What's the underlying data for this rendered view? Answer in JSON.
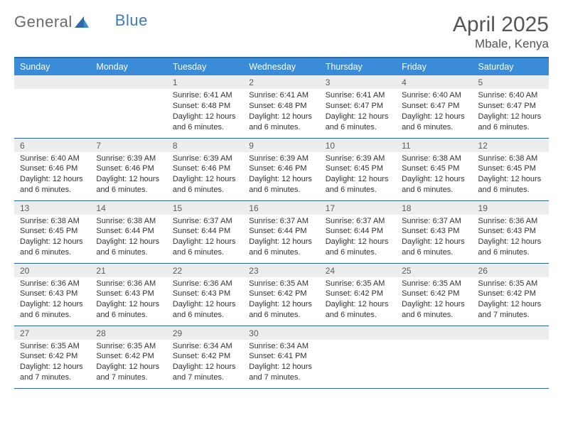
{
  "logo": {
    "text1": "General",
    "text2": "Blue"
  },
  "title": "April 2025",
  "location": "Mbale, Kenya",
  "colors": {
    "header_bg": "#3a8bd8",
    "header_text": "#ffffff",
    "border": "#2e6aa8",
    "daynum_bg": "#eceded",
    "text": "#333333",
    "logo_gray": "#6b6b6b",
    "logo_blue": "#3a7cc4"
  },
  "weekdays": [
    "Sunday",
    "Monday",
    "Tuesday",
    "Wednesday",
    "Thursday",
    "Friday",
    "Saturday"
  ],
  "weeks": [
    [
      null,
      null,
      {
        "n": "1",
        "sr": "6:41 AM",
        "ss": "6:48 PM",
        "dl": "12 hours and 6 minutes."
      },
      {
        "n": "2",
        "sr": "6:41 AM",
        "ss": "6:48 PM",
        "dl": "12 hours and 6 minutes."
      },
      {
        "n": "3",
        "sr": "6:41 AM",
        "ss": "6:47 PM",
        "dl": "12 hours and 6 minutes."
      },
      {
        "n": "4",
        "sr": "6:40 AM",
        "ss": "6:47 PM",
        "dl": "12 hours and 6 minutes."
      },
      {
        "n": "5",
        "sr": "6:40 AM",
        "ss": "6:47 PM",
        "dl": "12 hours and 6 minutes."
      }
    ],
    [
      {
        "n": "6",
        "sr": "6:40 AM",
        "ss": "6:46 PM",
        "dl": "12 hours and 6 minutes."
      },
      {
        "n": "7",
        "sr": "6:39 AM",
        "ss": "6:46 PM",
        "dl": "12 hours and 6 minutes."
      },
      {
        "n": "8",
        "sr": "6:39 AM",
        "ss": "6:46 PM",
        "dl": "12 hours and 6 minutes."
      },
      {
        "n": "9",
        "sr": "6:39 AM",
        "ss": "6:46 PM",
        "dl": "12 hours and 6 minutes."
      },
      {
        "n": "10",
        "sr": "6:39 AM",
        "ss": "6:45 PM",
        "dl": "12 hours and 6 minutes."
      },
      {
        "n": "11",
        "sr": "6:38 AM",
        "ss": "6:45 PM",
        "dl": "12 hours and 6 minutes."
      },
      {
        "n": "12",
        "sr": "6:38 AM",
        "ss": "6:45 PM",
        "dl": "12 hours and 6 minutes."
      }
    ],
    [
      {
        "n": "13",
        "sr": "6:38 AM",
        "ss": "6:45 PM",
        "dl": "12 hours and 6 minutes."
      },
      {
        "n": "14",
        "sr": "6:38 AM",
        "ss": "6:44 PM",
        "dl": "12 hours and 6 minutes."
      },
      {
        "n": "15",
        "sr": "6:37 AM",
        "ss": "6:44 PM",
        "dl": "12 hours and 6 minutes."
      },
      {
        "n": "16",
        "sr": "6:37 AM",
        "ss": "6:44 PM",
        "dl": "12 hours and 6 minutes."
      },
      {
        "n": "17",
        "sr": "6:37 AM",
        "ss": "6:44 PM",
        "dl": "12 hours and 6 minutes."
      },
      {
        "n": "18",
        "sr": "6:37 AM",
        "ss": "6:43 PM",
        "dl": "12 hours and 6 minutes."
      },
      {
        "n": "19",
        "sr": "6:36 AM",
        "ss": "6:43 PM",
        "dl": "12 hours and 6 minutes."
      }
    ],
    [
      {
        "n": "20",
        "sr": "6:36 AM",
        "ss": "6:43 PM",
        "dl": "12 hours and 6 minutes."
      },
      {
        "n": "21",
        "sr": "6:36 AM",
        "ss": "6:43 PM",
        "dl": "12 hours and 6 minutes."
      },
      {
        "n": "22",
        "sr": "6:36 AM",
        "ss": "6:43 PM",
        "dl": "12 hours and 6 minutes."
      },
      {
        "n": "23",
        "sr": "6:35 AM",
        "ss": "6:42 PM",
        "dl": "12 hours and 6 minutes."
      },
      {
        "n": "24",
        "sr": "6:35 AM",
        "ss": "6:42 PM",
        "dl": "12 hours and 6 minutes."
      },
      {
        "n": "25",
        "sr": "6:35 AM",
        "ss": "6:42 PM",
        "dl": "12 hours and 6 minutes."
      },
      {
        "n": "26",
        "sr": "6:35 AM",
        "ss": "6:42 PM",
        "dl": "12 hours and 7 minutes."
      }
    ],
    [
      {
        "n": "27",
        "sr": "6:35 AM",
        "ss": "6:42 PM",
        "dl": "12 hours and 7 minutes."
      },
      {
        "n": "28",
        "sr": "6:35 AM",
        "ss": "6:42 PM",
        "dl": "12 hours and 7 minutes."
      },
      {
        "n": "29",
        "sr": "6:34 AM",
        "ss": "6:42 PM",
        "dl": "12 hours and 7 minutes."
      },
      {
        "n": "30",
        "sr": "6:34 AM",
        "ss": "6:41 PM",
        "dl": "12 hours and 7 minutes."
      },
      null,
      null,
      null
    ]
  ],
  "labels": {
    "sunrise": "Sunrise:",
    "sunset": "Sunset:",
    "daylight": "Daylight:"
  }
}
